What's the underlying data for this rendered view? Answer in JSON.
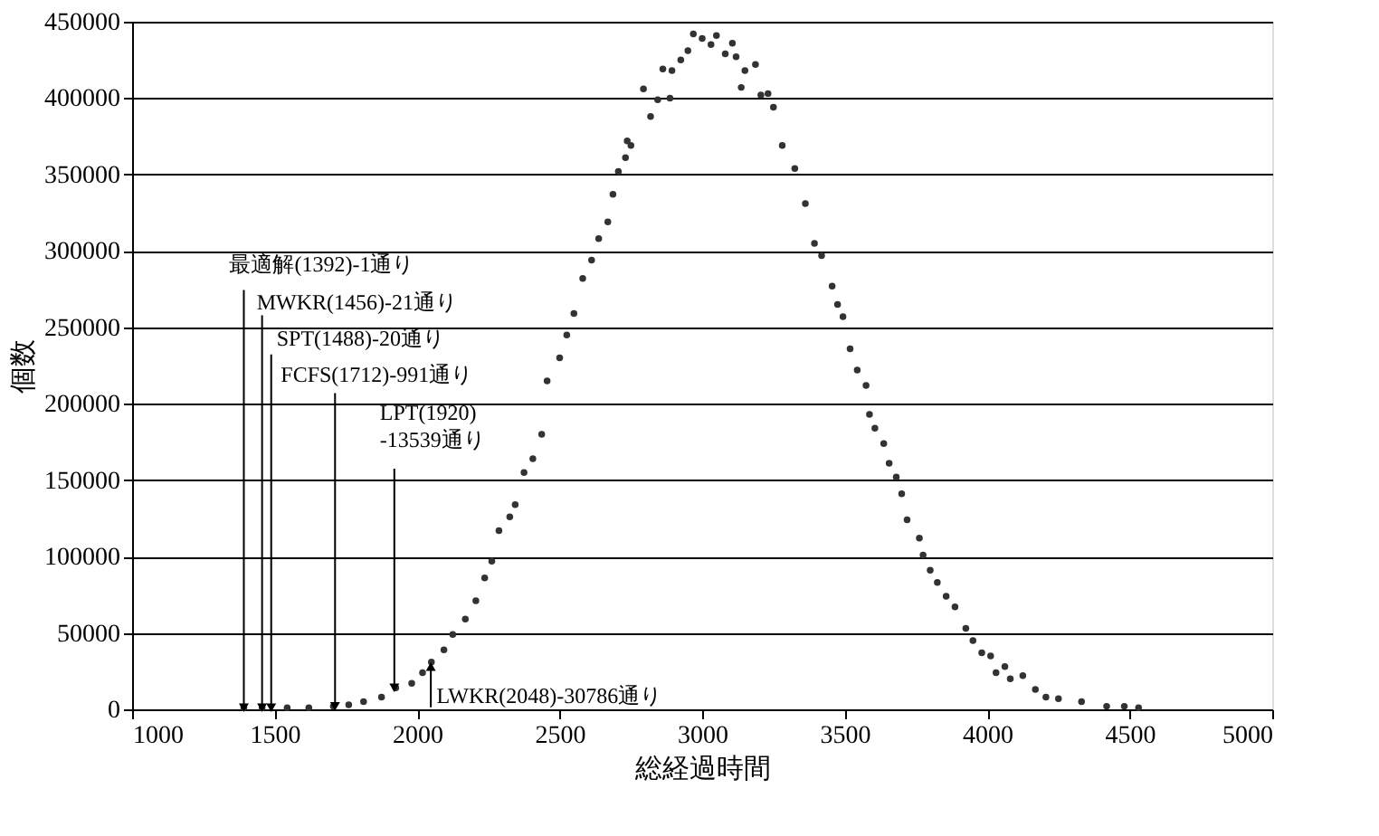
{
  "chart_data": {
    "type": "scatter",
    "xlabel": "総経過時間",
    "ylabel": "個数",
    "x": [
      1392,
      1456,
      1544,
      1620,
      1706,
      1760,
      1812,
      1875,
      1925,
      1981,
      2019,
      2050,
      2094,
      2125,
      2169,
      2206,
      2237,
      2262,
      2287,
      2325,
      2344,
      2375,
      2406,
      2437,
      2456,
      2500,
      2525,
      2550,
      2581,
      2612,
      2637,
      2669,
      2687,
      2706,
      2731,
      2737,
      2750,
      2794,
      2819,
      2844,
      2862,
      2887,
      2894,
      2925,
      2950,
      2969,
      3000,
      3031,
      3050,
      3081,
      3106,
      3119,
      3137,
      3150,
      3187,
      3206,
      3231,
      3250,
      3281,
      3325,
      3362,
      3394,
      3419,
      3456,
      3475,
      3494,
      3519,
      3544,
      3575,
      3587,
      3606,
      3637,
      3656,
      3681,
      3700,
      3719,
      3762,
      3775,
      3800,
      3825,
      3856,
      3887,
      3925,
      3950,
      3981,
      4012,
      4031,
      4062,
      4081,
      4125,
      4169,
      4206,
      4250,
      4331,
      4419,
      4481,
      4531
    ],
    "series": [
      {
        "color": "#333333",
        "values": [
          1000,
          1000,
          1000,
          1000,
          2000,
          3000,
          5000,
          8000,
          14000,
          17000,
          24000,
          31000,
          39000,
          49000,
          59000,
          71000,
          86000,
          97000,
          117000,
          126000,
          134000,
          155000,
          164000,
          180000,
          215000,
          230000,
          245000,
          259000,
          282000,
          294000,
          308000,
          319000,
          337000,
          352000,
          361000,
          372000,
          369000,
          406000,
          388000,
          399000,
          419000,
          400000,
          418000,
          425000,
          431000,
          442000,
          439000,
          435000,
          441000,
          429000,
          436000,
          427000,
          407000,
          418000,
          422000,
          402000,
          403000,
          394000,
          369000,
          354000,
          331000,
          305000,
          297000,
          277000,
          265000,
          257000,
          236000,
          222000,
          212000,
          193000,
          184000,
          174000,
          161000,
          152000,
          141000,
          124000,
          112000,
          101000,
          91000,
          83000,
          74000,
          67000,
          53000,
          45000,
          37000,
          35000,
          24000,
          28000,
          20000,
          22000,
          13000,
          8000,
          7000,
          5000,
          2000,
          2000,
          1000
        ]
      }
    ],
    "marker": "circle",
    "xlim": [
      1000,
      5000
    ],
    "xticks": [
      1000,
      1500,
      2000,
      2500,
      3000,
      3500,
      4000,
      4500,
      5000
    ],
    "ylim": [
      0,
      450000
    ],
    "yticks": [
      0,
      50000,
      100000,
      150000,
      200000,
      250000,
      300000,
      350000,
      400000,
      450000
    ],
    "grid": "y",
    "legend": false,
    "annotations": [
      {
        "text": "最適解(1392)-1通り",
        "x": 1392,
        "y": 1000
      },
      {
        "text": "MWKR(1456)-21通り",
        "x": 1456,
        "y": 1000
      },
      {
        "text": "SPT(1488)-20通り",
        "x": 1488,
        "y": 1000
      },
      {
        "text": "FCFS(1712)-991通り",
        "x": 1712,
        "y": 2000
      },
      {
        "text": "LPT(1920)\n-13539通り",
        "x": 1920,
        "y": 14000
      },
      {
        "text": "LWKR(2048)-30786通り",
        "x": 2048,
        "y": 28000
      }
    ]
  }
}
